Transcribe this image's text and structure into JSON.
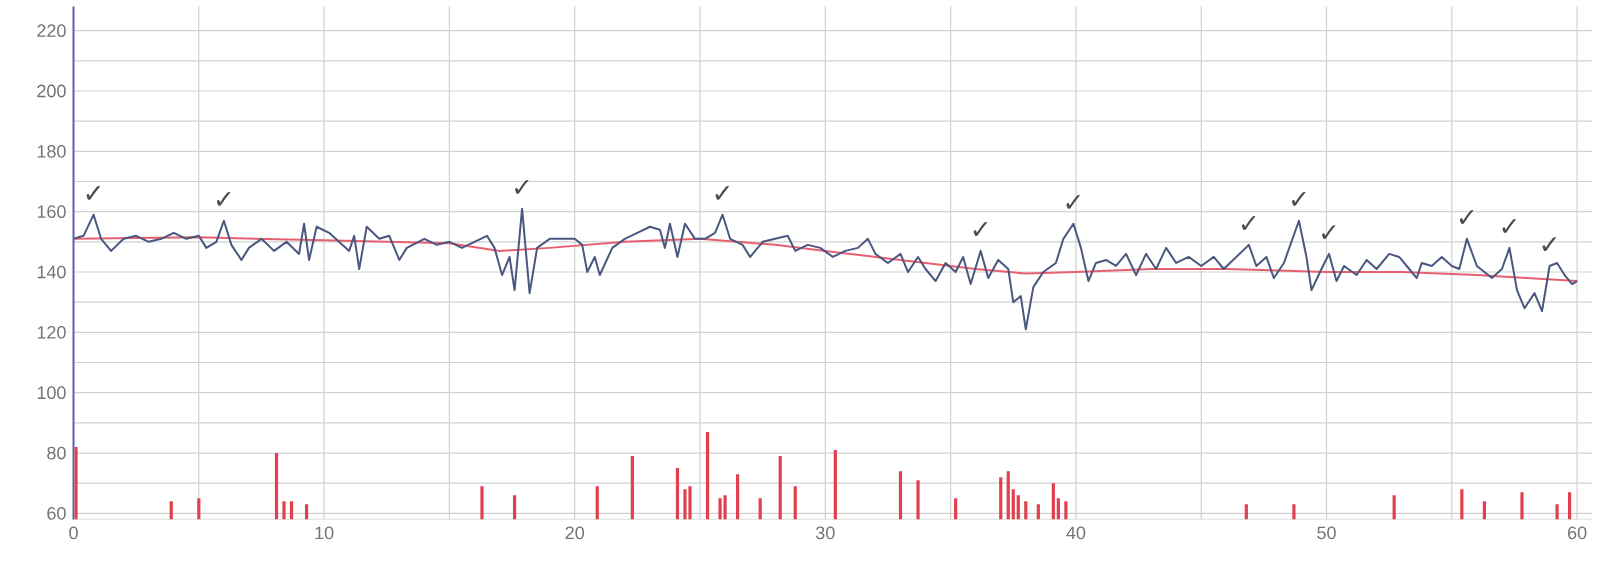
{
  "chart_data": {
    "type": "line",
    "xlim": [
      0,
      60.6
    ],
    "ylim": [
      58,
      228
    ],
    "xticks": [
      0,
      {
        "value": 5,
        "label": null
      },
      10,
      {
        "value": 15,
        "label": null
      },
      20,
      {
        "value": 25,
        "label": null
      },
      30,
      {
        "value": 35,
        "label": null
      },
      40,
      {
        "value": 45,
        "label": null
      },
      50,
      {
        "value": 55,
        "label": null
      },
      60
    ],
    "yticks": [
      60,
      {
        "value": 70,
        "label": null
      },
      80,
      {
        "value": 90,
        "label": null
      },
      100,
      {
        "value": 110,
        "label": null
      },
      120,
      {
        "value": 130,
        "label": null
      },
      140,
      {
        "value": 150,
        "label": null
      },
      160,
      {
        "value": 170,
        "label": null
      },
      180,
      {
        "value": 190,
        "label": null
      },
      200,
      {
        "value": 210,
        "label": null
      },
      220
    ],
    "grid": true,
    "series": [
      {
        "type": "bar",
        "color": "#e0404f",
        "x": [
          0.1,
          3.9,
          5.0,
          8.1,
          8.4,
          8.7,
          9.3,
          16.3,
          17.6,
          20.9,
          22.3,
          24.1,
          24.4,
          24.6,
          25.3,
          25.8,
          26.0,
          26.5,
          27.4,
          28.2,
          28.8,
          30.4,
          33.0,
          33.7,
          35.2,
          37.0,
          37.3,
          37.5,
          37.7,
          38.0,
          38.5,
          39.1,
          39.3,
          39.6,
          46.8,
          48.7,
          52.7,
          55.4,
          56.3,
          57.8,
          59.2,
          59.7
        ],
        "values": [
          82,
          64,
          65,
          80,
          64,
          64,
          63,
          69,
          66,
          69,
          79,
          75,
          68,
          69,
          87,
          65,
          66,
          73,
          65,
          79,
          69,
          81,
          74,
          71,
          65,
          72,
          74,
          68,
          66,
          64,
          63,
          70,
          65,
          64,
          63,
          63,
          66,
          68,
          64,
          67,
          63,
          67
        ]
      },
      {
        "color": "#e86070",
        "x": [
          0,
          5,
          10,
          15,
          17,
          19,
          22,
          25,
          28,
          30,
          33,
          36,
          38,
          40,
          43,
          46,
          50,
          53,
          56,
          58,
          60
        ],
        "values": [
          151,
          151.5,
          150.5,
          149.5,
          147,
          148,
          150,
          151,
          149,
          147,
          144,
          141,
          139.5,
          140,
          141,
          141,
          140,
          140,
          139,
          138,
          137
        ]
      },
      {
        "color": "#4a5880",
        "x": [
          0,
          0.4,
          0.8,
          1.1,
          1.5,
          2,
          2.5,
          3,
          3.5,
          4,
          4.5,
          5,
          5.3,
          5.7,
          6,
          6.3,
          6.7,
          7,
          7.5,
          8,
          8.5,
          9,
          9.2,
          9.4,
          9.7,
          10.2,
          10.6,
          11,
          11.2,
          11.4,
          11.7,
          12.2,
          12.6,
          13,
          13.3,
          14,
          14.5,
          15,
          15.5,
          16,
          16.5,
          16.8,
          17.1,
          17.4,
          17.6,
          17.9,
          18.2,
          18.5,
          19,
          20,
          20.3,
          20.5,
          20.8,
          21,
          21.5,
          22,
          22.5,
          23,
          23.4,
          23.6,
          23.8,
          24.1,
          24.4,
          24.8,
          25.2,
          25.6,
          25.9,
          26.2,
          26.7,
          27,
          27.5,
          28,
          28.5,
          28.8,
          29.3,
          29.8,
          30.3,
          30.8,
          31.3,
          31.7,
          32,
          32.5,
          33,
          33.3,
          33.7,
          34,
          34.4,
          34.8,
          35.2,
          35.5,
          35.8,
          36.2,
          36.5,
          36.9,
          37.3,
          37.5,
          37.8,
          38,
          38.3,
          38.7,
          39.2,
          39.5,
          39.9,
          40.2,
          40.5,
          40.8,
          41.2,
          41.6,
          42,
          42.4,
          42.8,
          43.2,
          43.6,
          44,
          44.5,
          45,
          45.5,
          45.9,
          46.4,
          46.9,
          47.2,
          47.6,
          47.9,
          48.3,
          48.9,
          49.2,
          49.4,
          49.8,
          50.1,
          50.4,
          50.7,
          51.2,
          51.6,
          52,
          52.5,
          52.9,
          53.3,
          53.6,
          53.8,
          54.2,
          54.6,
          55,
          55.3,
          55.6,
          56,
          56.3,
          56.6,
          57,
          57.3,
          57.6,
          57.9,
          58.3,
          58.6,
          58.9,
          59.2,
          59.5,
          59.8,
          60
        ],
        "values": [
          151,
          152,
          159,
          151,
          147,
          151,
          152,
          150,
          151,
          153,
          151,
          152,
          148,
          150,
          157,
          149,
          144,
          148,
          151,
          147,
          150,
          146,
          156,
          144,
          155,
          153,
          150,
          147,
          152,
          141,
          155,
          151,
          152,
          144,
          148,
          151,
          149,
          150,
          148,
          150,
          152,
          148,
          139,
          145,
          134,
          161,
          133,
          148,
          151,
          151,
          149,
          140,
          145,
          139,
          148,
          151,
          153,
          155,
          154,
          148,
          156,
          145,
          156,
          151,
          151,
          153,
          159,
          151,
          149,
          145,
          150,
          151,
          152,
          147,
          149,
          148,
          145,
          147,
          148,
          151,
          146,
          143,
          146,
          140,
          145,
          141,
          137,
          143,
          140,
          145,
          136,
          147,
          138,
          144,
          141,
          130,
          132,
          121,
          135,
          140,
          143,
          151,
          156,
          148,
          137,
          143,
          144,
          142,
          146,
          139,
          146,
          141,
          148,
          143,
          145,
          142,
          145,
          141,
          145,
          149,
          142,
          145,
          138,
          143,
          157,
          145,
          134,
          141,
          146,
          137,
          142,
          139,
          144,
          141,
          146,
          145,
          141,
          138,
          143,
          142,
          145,
          142,
          141,
          151,
          142,
          140,
          138,
          141,
          148,
          134,
          128,
          133,
          127,
          142,
          143,
          139,
          136,
          137
        ]
      }
    ],
    "annotations": [
      {
        "text": "✓",
        "x": 0.8,
        "y": 159
      },
      {
        "text": "✓",
        "x": 6,
        "y": 157
      },
      {
        "text": "✓",
        "x": 17.9,
        "y": 161
      },
      {
        "text": "✓",
        "x": 25.9,
        "y": 159
      },
      {
        "text": "✓",
        "x": 36.2,
        "y": 147
      },
      {
        "text": "✓",
        "x": 39.9,
        "y": 156
      },
      {
        "text": "✓",
        "x": 46.9,
        "y": 149
      },
      {
        "text": "✓",
        "x": 48.9,
        "y": 157
      },
      {
        "text": "✓",
        "x": 50.1,
        "y": 146
      },
      {
        "text": "✓",
        "x": 55.6,
        "y": 151
      },
      {
        "text": "✓",
        "x": 57.3,
        "y": 148
      },
      {
        "text": "✓",
        "x": 58.9,
        "y": 142
      }
    ]
  }
}
